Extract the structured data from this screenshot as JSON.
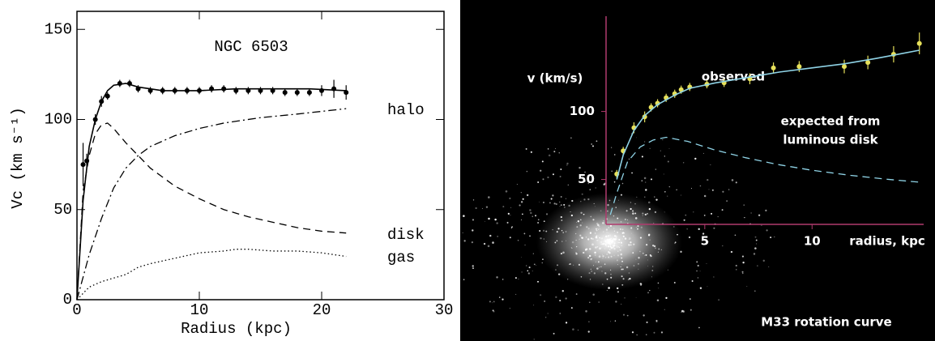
{
  "chart_data": [
    {
      "type": "line",
      "xlabel": "Radius (kpc)",
      "ylabel": "Vc (km s⁻¹)",
      "xlim": [
        0,
        30
      ],
      "ylim": [
        0,
        160
      ],
      "xticks": [
        0,
        10,
        20,
        30
      ],
      "yticks": [
        0,
        50,
        100,
        150
      ],
      "annotations": [
        "NGC 6503",
        "halo",
        "disk",
        "gas"
      ],
      "series": [
        {
          "color": "#000000",
          "style": "marker",
          "x": [
            0.5,
            0.8,
            1.5,
            2.0,
            2.5,
            3.5,
            4.3,
            5.0,
            6.0,
            7.0,
            8.0,
            9.0,
            10.0,
            11.0,
            12.0,
            13.0,
            14.0,
            15.0,
            16.0,
            17.0,
            18.0,
            19.0,
            20.0,
            21.0,
            22.0
          ],
          "values": [
            75,
            77,
            100,
            110,
            113,
            120,
            120,
            117,
            116,
            116,
            116,
            116,
            116,
            117,
            117,
            116,
            116,
            116,
            116,
            115,
            115,
            115,
            116,
            117,
            115
          ],
          "errors": [
            12,
            4,
            3,
            3,
            2,
            2,
            2,
            2,
            2,
            2,
            2,
            2,
            2,
            2,
            2,
            2,
            2,
            2,
            2,
            2,
            2,
            2,
            3,
            5,
            4
          ]
        },
        {
          "color": "#000000",
          "style": "solid",
          "x": [
            0,
            0.5,
            1,
            1.5,
            2,
            2.5,
            3,
            4,
            5,
            7,
            10,
            13,
            16,
            19,
            22
          ],
          "values": [
            0,
            55,
            85,
            100,
            110,
            116,
            119,
            120,
            118,
            116,
            116,
            117,
            117,
            117,
            116
          ]
        },
        {
          "color": "#000000",
          "style": "dashdot",
          "x": [
            0,
            1,
            2,
            3,
            4,
            5,
            6,
            8,
            10,
            12,
            15,
            18,
            22
          ],
          "values": [
            0,
            25,
            45,
            62,
            73,
            80,
            85,
            91,
            95,
            98,
            101,
            103,
            106
          ]
        },
        {
          "color": "#000000",
          "style": "dashed",
          "x": [
            0,
            0.5,
            1,
            1.5,
            2,
            2.5,
            3,
            4,
            5,
            6,
            8,
            10,
            12,
            14,
            16,
            18,
            20,
            22
          ],
          "values": [
            0,
            60,
            80,
            92,
            97,
            98,
            95,
            87,
            80,
            73,
            63,
            56,
            50,
            46,
            43,
            40,
            38,
            37
          ]
        },
        {
          "color": "#000000",
          "style": "dotted",
          "x": [
            0,
            1,
            2,
            3,
            4,
            5,
            6,
            8,
            10,
            12,
            13,
            14,
            16,
            18,
            20,
            22
          ],
          "values": [
            0,
            7,
            10,
            12,
            14,
            18,
            20,
            23,
            26,
            27,
            28,
            28,
            27,
            27,
            26,
            24
          ]
        }
      ]
    },
    {
      "type": "line",
      "xlabel": "radius, kpc",
      "ylabel": "v (km/s)",
      "title": "M33 rotation curve",
      "xlim": [
        0.4,
        15.2
      ],
      "ylim": [
        17,
        170
      ],
      "xticks": [
        5,
        10
      ],
      "yticks": [
        50,
        100
      ],
      "annotations": [
        "observed",
        "expected from",
        "luminous disk"
      ],
      "series": [
        {
          "color": "#e6e05a",
          "style": "marker",
          "x": [
            0.9,
            1.2,
            1.7,
            2.2,
            2.5,
            2.8,
            3.2,
            3.6,
            3.9,
            4.3,
            5.1,
            5.9,
            7.1,
            8.2,
            9.4,
            11.5,
            12.6,
            13.8,
            15.0
          ],
          "values": [
            54,
            71,
            88,
            96,
            103,
            106,
            110,
            113,
            116,
            118,
            120,
            121,
            124,
            132,
            133,
            133,
            136,
            142,
            150
          ],
          "errors": [
            3,
            3,
            4,
            4,
            3,
            3,
            3,
            3,
            3,
            3,
            3,
            3,
            4,
            4,
            4,
            5,
            5,
            6,
            8
          ]
        },
        {
          "color": "#8fd3e6",
          "style": "solid",
          "x": [
            0.9,
            1.2,
            1.7,
            2.2,
            2.8,
            3.6,
            4.3,
            5.5,
            7.0,
            8.5,
            10.0,
            11.5,
            13.0,
            14.0,
            15.0
          ],
          "values": [
            50,
            68,
            86,
            97,
            105,
            112,
            117,
            121,
            125,
            129,
            132,
            135,
            139,
            142,
            145
          ]
        },
        {
          "color": "#8fd3e6",
          "style": "dashed",
          "x": [
            0.6,
            0.9,
            1.4,
            2.0,
            2.6,
            3.2,
            4.2,
            5.4,
            6.9,
            8.4,
            9.9,
            11.8,
            13.6,
            15.0
          ],
          "values": [
            24,
            40,
            63,
            74,
            79,
            81,
            78,
            72,
            66,
            61,
            57,
            53,
            50,
            48
          ]
        }
      ]
    }
  ]
}
